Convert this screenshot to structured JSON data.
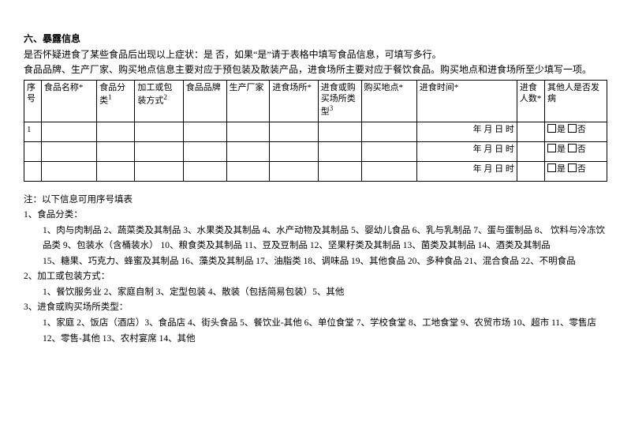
{
  "section_title": "六、暴露信息",
  "intro_line1": "是否怀疑进食了某些食品后出现以上症状：是  否，如果“是”请于表格中填写食品信息，可填写多行。",
  "intro_line2": "食品品牌、生产厂家、购买地点信息主要对应于预包装及散装产品，进食场所主要对应于餐饮食品。购买地点和进食场所至少填写一项。",
  "headers": {
    "seq": "序号",
    "name": "食品名称*",
    "cat": "食品分类",
    "cat_sup": "1",
    "pack": "加工或包装方式",
    "pack_sup": "2",
    "brand": "食品品牌",
    "mfr": "生产厂家",
    "place": "进食场所*",
    "ptype": "进食或购买场所类型",
    "ptype_sup": "3",
    "buy": "购买地点*",
    "time": "进食时间*",
    "pnum": "进食人数*",
    "other": "其他人是否发病"
  },
  "rows": [
    {
      "seq": "1",
      "time": "年    月    日    时",
      "other_yes": "是",
      "other_no": "否"
    },
    {
      "seq": "",
      "time": "年    月    日    时",
      "other_yes": "是",
      "other_no": "否"
    },
    {
      "seq": "",
      "time": "年    月    日    时",
      "other_yes": "是",
      "other_no": "否"
    }
  ],
  "notes": {
    "header": "注：以下信息可用序号填表",
    "n1_title": "1、食品分类：",
    "n1_line1": "1、肉与肉制品  2、蔬菜类及其制品  3、水果类及其制品  4、水产动物及其制品  5、婴幼儿食品  6、乳与乳制品  7、蛋与蛋制品  8、  饮料与冷冻饮品类  9、包装水（含桶装水）  10、粮食类及其制品  11、豆及豆制品  12、坚果籽类及其制品  13、菌类及其制品  14、酒类及其制品",
    "n1_line2": "15、糖果、巧克力、蜂蜜及其制品  16、藻类及其制品  17、油脂类  18、调味品  19、其他食品  20、多种食品  21、混合食品  22、不明食品",
    "n2_title": "2、加工或包装方式：",
    "n2_line1": "1、餐饮服务业  2、家庭自制  3、定型包装  4、散装（包括简易包装）5、其他",
    "n3_title": "3、进食或购买场所类型：",
    "n3_line1": "1、家庭  2、饭店（酒店）3、食品店  4、街头食品  5、餐饮业-其他  6、单位食堂  7、学校食堂  8、工地食堂  9、农贸市场  10、超市  11、零售店",
    "n3_line2": "12、零售-其他  13、农村宴席  14、其他"
  }
}
